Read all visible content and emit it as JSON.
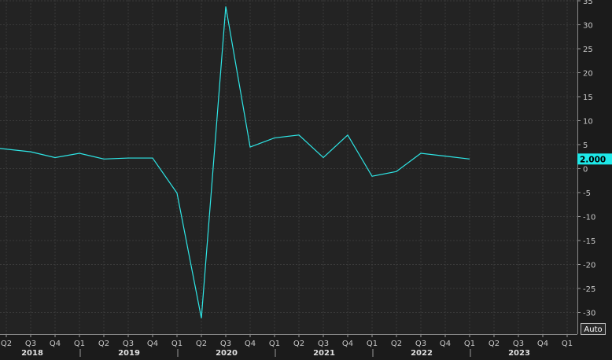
{
  "chart_data": {
    "type": "line",
    "x": [
      "Q2",
      "Q3",
      "Q4",
      "Q1",
      "Q2",
      "Q3",
      "Q4",
      "Q1",
      "Q2",
      "Q3",
      "Q4",
      "Q1",
      "Q2",
      "Q3",
      "Q4",
      "Q1",
      "Q2",
      "Q3",
      "Q4",
      "Q1"
    ],
    "values": [
      4.2,
      3.5,
      2.3,
      3.2,
      2.0,
      2.2,
      2.2,
      -5.1,
      -31.2,
      33.8,
      4.5,
      6.4,
      7.0,
      2.3,
      7.0,
      -1.6,
      -0.6,
      3.2,
      2.6,
      2.0
    ],
    "x_ticks": [
      "Q2",
      "Q3",
      "Q4",
      "Q1",
      "Q2",
      "Q3",
      "Q4",
      "Q1",
      "Q2",
      "Q3",
      "Q4",
      "Q1",
      "Q2",
      "Q3",
      "Q4",
      "Q1",
      "Q2",
      "Q3",
      "Q4",
      "Q1",
      "Q2",
      "Q3",
      "Q4",
      "Q1"
    ],
    "years": [
      "2018",
      "2019",
      "2020",
      "2021",
      "2022",
      "2023"
    ],
    "y_ticks": [
      35,
      30,
      25,
      20,
      15,
      10,
      5,
      0,
      -5,
      -10,
      -15,
      -20,
      -25,
      -30
    ],
    "ylim": [
      -33,
      35
    ],
    "last_value_label": "2.000",
    "scale_button": "Auto",
    "grid": true,
    "line_color": "#2ee6e6",
    "background_color": "#1b1b1b",
    "label_bg_color": "#1ee8e8"
  }
}
